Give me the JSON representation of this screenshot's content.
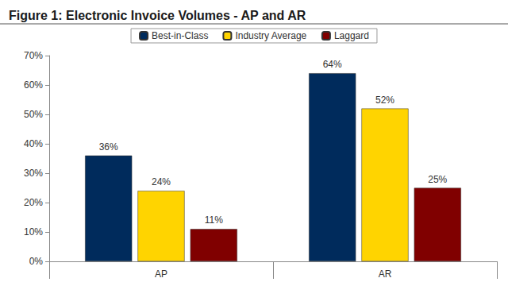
{
  "chart_data": {
    "type": "bar",
    "title": "Figure 1: Electronic Invoice Volumes - AP and AR",
    "categories": [
      "AP",
      "AR"
    ],
    "series": [
      {
        "name": "Best-in-Class",
        "color": "#002b5c",
        "values": [
          36,
          64
        ],
        "value_labels": [
          "36%",
          "64%"
        ]
      },
      {
        "name": "Industry Average",
        "color": "#ffd400",
        "values": [
          24,
          52
        ],
        "value_labels": [
          "24%",
          "52%"
        ]
      },
      {
        "name": "Laggard",
        "color": "#800000",
        "values": [
          11,
          25
        ],
        "value_labels": [
          "11%",
          "25%"
        ]
      }
    ],
    "ylim": [
      0,
      70
    ],
    "yticks": [
      {
        "value": 0,
        "label": "0%"
      },
      {
        "value": 10,
        "label": "10%"
      },
      {
        "value": 20,
        "label": "20%"
      },
      {
        "value": 30,
        "label": "30%"
      },
      {
        "value": 40,
        "label": "40%"
      },
      {
        "value": 50,
        "label": "50%"
      },
      {
        "value": 60,
        "label": "60%"
      },
      {
        "value": 70,
        "label": "70%"
      }
    ],
    "grid": false,
    "legend": "top",
    "data_labels": true
  }
}
